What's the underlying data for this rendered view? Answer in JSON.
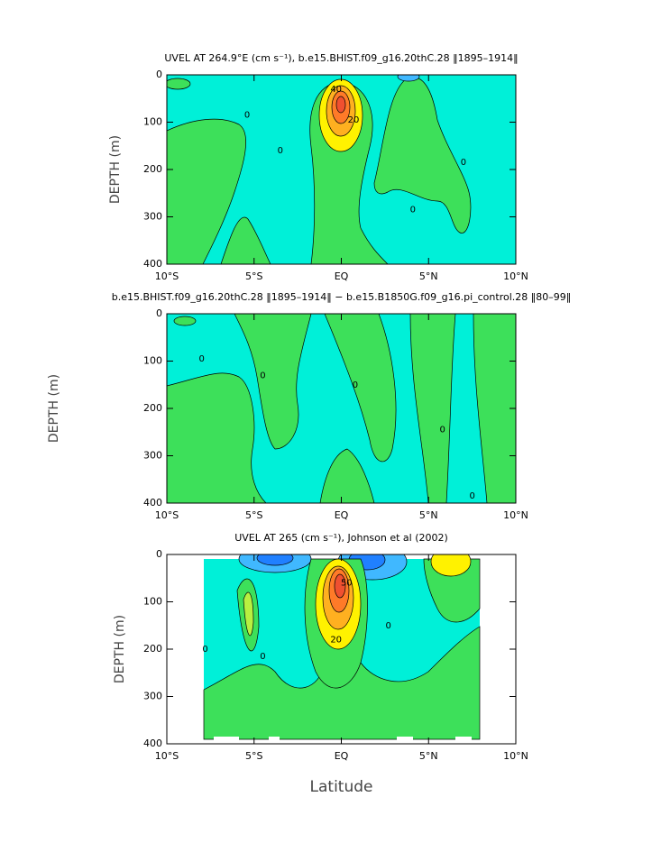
{
  "chart_data": [
    {
      "type": "contour",
      "title": "UVEL AT 264.9°E (cm s⁻¹), b.e15.BHIST.f09_g16.20thC.28 ‖1895–1914‖",
      "ylabel": "DEPTH (m)",
      "xlim": [
        -10,
        10
      ],
      "ylim": [
        400,
        0
      ],
      "xticks": [
        {
          "value": -10,
          "label": "10°S"
        },
        {
          "value": -5,
          "label": "5°S"
        },
        {
          "value": 0,
          "label": "EQ"
        },
        {
          "value": 5,
          "label": "5°N"
        },
        {
          "value": 10,
          "label": "10°N"
        }
      ],
      "yticks": [
        0,
        100,
        200,
        300,
        400
      ],
      "contour_labels": [
        {
          "label": "40",
          "x": -0.3,
          "y": 30
        },
        {
          "label": "20",
          "x": 0.7,
          "y": 95
        },
        {
          "label": "0",
          "x": -5.4,
          "y": 85
        },
        {
          "label": "0",
          "x": -3.5,
          "y": 160
        },
        {
          "label": "0",
          "x": 7,
          "y": 185
        },
        {
          "label": "0",
          "x": 4.1,
          "y": 285
        }
      ]
    },
    {
      "type": "contour",
      "title": "b.e15.BHIST.f09_g16.20thC.28 ‖1895–1914‖ − b.e15.B1850G.f09_g16.pi_control.28 ‖80–99‖",
      "ylabel": "DEPTH (m)",
      "xlim": [
        -10,
        10
      ],
      "ylim": [
        400,
        0
      ],
      "xticks": [
        {
          "value": -10,
          "label": "10°S"
        },
        {
          "value": -5,
          "label": "5°S"
        },
        {
          "value": 0,
          "label": "EQ"
        },
        {
          "value": 5,
          "label": "5°N"
        },
        {
          "value": 10,
          "label": "10°N"
        }
      ],
      "yticks": [
        0,
        100,
        200,
        300,
        400
      ],
      "contour_labels": [
        {
          "label": "0",
          "x": -8,
          "y": 95
        },
        {
          "label": "0",
          "x": -4.5,
          "y": 130
        },
        {
          "label": "0",
          "x": 0.8,
          "y": 150
        },
        {
          "label": "0",
          "x": 5.8,
          "y": 245
        },
        {
          "label": "0",
          "x": 7.5,
          "y": 385
        }
      ]
    },
    {
      "type": "contour",
      "title": "UVEL AT 265 (cm s⁻¹), Johnson et al (2002)",
      "ylabel": "DEPTH (m)",
      "xlabel": "Latitude",
      "xlim": [
        -10,
        10
      ],
      "ylim": [
        400,
        0
      ],
      "xticks": [
        {
          "value": -10,
          "label": "10°S"
        },
        {
          "value": -5,
          "label": "5°S"
        },
        {
          "value": 0,
          "label": "EQ"
        },
        {
          "value": 5,
          "label": "5°N"
        },
        {
          "value": 10,
          "label": "10°N"
        }
      ],
      "yticks": [
        0,
        100,
        200,
        300,
        400
      ],
      "contour_labels": [
        {
          "label": "50",
          "x": 0.3,
          "y": 60
        },
        {
          "label": "20",
          "x": -0.3,
          "y": 180
        },
        {
          "label": "0",
          "x": -7.8,
          "y": 200
        },
        {
          "label": "0",
          "x": -4.5,
          "y": 215
        },
        {
          "label": "0",
          "x": 2.7,
          "y": 150
        }
      ]
    }
  ]
}
